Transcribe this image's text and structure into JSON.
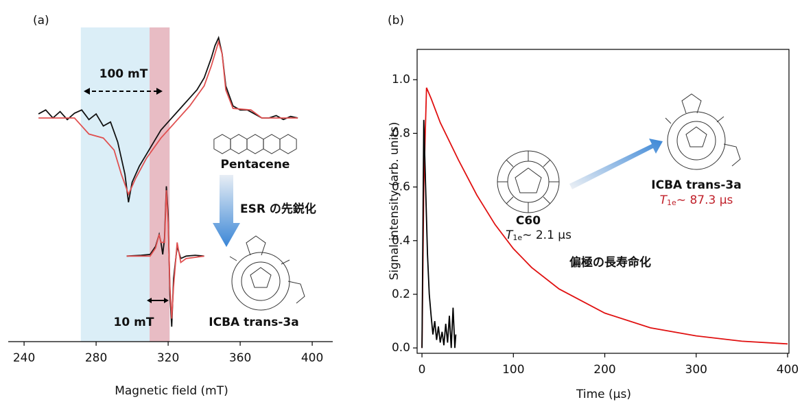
{
  "chart_data": [
    {
      "type": "line",
      "panel_label": "(a)",
      "x_label": "Magnetic field (mT)",
      "xlim": [
        231.2,
        411.4
      ],
      "xticks": [
        240,
        280,
        320,
        360,
        400
      ],
      "ylim": [
        -2.786,
        1.128
      ],
      "shaded_regions": [
        {
          "xlim": [
            271.5,
            320.8
          ],
          "color": "#dbeef7"
        },
        {
          "xlim": [
            309.7,
            320.8
          ],
          "color": "#e8bcc4"
        }
      ],
      "series": [
        {
          "color": "#111111",
          "x": [
            248,
            252,
            256,
            260,
            264,
            268,
            272,
            276,
            280,
            284,
            288,
            292,
            296,
            298,
            300,
            304,
            308,
            312,
            316,
            320,
            324,
            328,
            332,
            336,
            340,
            344,
            346,
            348,
            350,
            352,
            356,
            360,
            364,
            368,
            372,
            376,
            380,
            384,
            388,
            392
          ],
          "values": [
            0.05,
            0.1,
            0,
            0.08,
            -0.02,
            0.06,
            0.1,
            -0.02,
            0.05,
            -0.1,
            -0.05,
            -0.3,
            -0.7,
            -1.05,
            -0.8,
            -0.6,
            -0.45,
            -0.3,
            -0.15,
            -0.05,
            0.05,
            0.15,
            0.25,
            0.35,
            0.5,
            0.75,
            0.9,
            1.0,
            0.8,
            0.4,
            0.15,
            0.1,
            0.1,
            0.05,
            0,
            0,
            0.03,
            -0.02,
            0.02,
            0
          ]
        },
        {
          "color": "#e05050",
          "x": [
            248,
            268,
            272,
            276,
            284,
            290,
            294,
            298,
            302,
            308,
            316,
            324,
            332,
            340,
            344,
            348,
            350,
            352,
            356,
            366,
            372,
            392
          ],
          "values": [
            0,
            0,
            -0.1,
            -0.2,
            -0.25,
            -0.4,
            -0.7,
            -0.95,
            -0.75,
            -0.5,
            -0.25,
            -0.05,
            0.15,
            0.4,
            0.65,
            0.95,
            0.8,
            0.35,
            0.12,
            0.1,
            0,
            0
          ]
        },
        {
          "color": "#111111",
          "x": [
            297,
            305,
            310,
            313,
            315,
            316,
            317,
            318,
            319,
            320,
            321,
            322,
            323,
            325,
            327,
            330,
            335,
            340
          ],
          "values": [
            -1.72,
            -1.71,
            -1.7,
            -1.6,
            -1.45,
            -1.55,
            -1.7,
            -1.5,
            -0.85,
            -1.2,
            -2.2,
            -2.6,
            -2.0,
            -1.6,
            -1.75,
            -1.72,
            -1.71,
            -1.72
          ]
        },
        {
          "color": "#e05050",
          "x": [
            297,
            310,
            313,
            315,
            316,
            318,
            319,
            320,
            321,
            322,
            323,
            325,
            327,
            330,
            340
          ],
          "values": [
            -1.72,
            -1.72,
            -1.62,
            -1.45,
            -1.55,
            -1.55,
            -0.9,
            -1.3,
            -2.1,
            -2.5,
            -2.1,
            -1.55,
            -1.8,
            -1.75,
            -1.72
          ]
        }
      ],
      "annotations": [
        "100 mT",
        "10 mT",
        "Pentacene",
        "ESR の先鋭化",
        "ICBA trans-3a"
      ]
    },
    {
      "type": "line",
      "panel_label": "(b)",
      "x_label": "Time (μs)",
      "y_label": "Signal intensity (arb. units)",
      "xlim": [
        -5.3,
        401.5
      ],
      "xticks": [
        0,
        100,
        200,
        300,
        400
      ],
      "ylim": [
        -0.02,
        1.113
      ],
      "yticks": [
        {
          "value": 0,
          "label": "0.0"
        },
        {
          "value": 0.2,
          "label": "0.2"
        },
        {
          "value": 0.4,
          "label": "0.4"
        },
        {
          "value": 0.6,
          "label": "0.6"
        },
        {
          "value": 0.8,
          "label": "0.8"
        },
        {
          "value": 1.0,
          "label": "1.0"
        }
      ],
      "series": [
        {
          "color": "#e01010",
          "x": [
            0,
            2,
            5,
            10,
            20,
            40,
            60,
            80,
            100,
            120,
            150,
            200,
            250,
            300,
            350,
            400
          ],
          "values": [
            0,
            0.6,
            0.97,
            0.93,
            0.84,
            0.7,
            0.57,
            0.46,
            0.37,
            0.3,
            0.22,
            0.13,
            0.075,
            0.045,
            0.025,
            0.015
          ]
        },
        {
          "color": "#000000",
          "x": [
            0,
            2,
            4,
            6,
            8,
            10,
            12,
            14,
            16,
            18,
            20,
            22,
            24,
            26,
            28,
            30,
            32,
            34,
            36,
            37
          ],
          "values": [
            0,
            0.85,
            0.6,
            0.35,
            0.2,
            0.12,
            0.05,
            0.1,
            0.03,
            0.08,
            0.02,
            0.06,
            0.01,
            0.09,
            0.02,
            0.12,
            0,
            0.15,
            0,
            0.05
          ]
        }
      ],
      "annotations": [
        "C60",
        {
          "symbol": "T",
          "subscript": "1e",
          "text": "∼ 2.1 μs"
        },
        "ICBA trans-3a",
        {
          "symbol": "T",
          "subscript": "1e",
          "text": "∼ 87.3 μs"
        },
        "偏極の長寿命化"
      ]
    }
  ]
}
